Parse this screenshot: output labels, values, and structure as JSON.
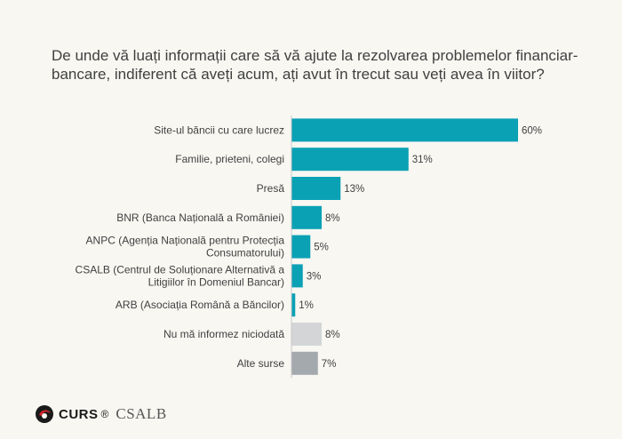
{
  "title": "De unde vă luați informații care să vă ajute la rezolvarea problemelor financiar-bancare, indiferent că aveți acum, ați avut în trecut sau veți avea în viitor?",
  "chart_data": {
    "type": "bar",
    "orientation": "horizontal",
    "title": "De unde vă luați informații care să vă ajute la rezolvarea problemelor financiar-bancare, indiferent că aveți acum, ați avut în trecut sau veți avea în viitor?",
    "categories": [
      [
        "Site-ul băncii cu care lucrez"
      ],
      [
        "Familie, prieteni, colegi"
      ],
      [
        "Presă"
      ],
      [
        "BNR (Banca Națională a României)"
      ],
      [
        "ANPC (Agenția Națională pentru Protecția",
        "Consumatorului)"
      ],
      [
        "CSALB (Centrul de Soluționare Alternativă a",
        "Litigiilor în Domeniul Bancar)"
      ],
      [
        "ARB (Asociația Română a Băncilor)"
      ],
      [
        "Nu mă informez niciodată"
      ],
      [
        "Alte surse"
      ]
    ],
    "values": [
      60,
      31,
      13,
      8,
      5,
      3,
      1,
      8,
      7
    ],
    "value_labels": [
      "60%",
      "31%",
      "13%",
      "8%",
      "5%",
      "3%",
      "1%",
      "8%",
      "7%"
    ],
    "colors": [
      "#0aa1b5",
      "#0aa1b5",
      "#0aa1b5",
      "#0aa1b5",
      "#0aa1b5",
      "#0aa1b5",
      "#0aa1b5",
      "#d3d5d6",
      "#a4a9ae"
    ],
    "xlim": [
      0,
      60
    ],
    "grid": false,
    "axis_line": true
  },
  "footer": {
    "curs_logo_text": "CURS",
    "registered_mark": "®",
    "csalb_logo_text": "CSALB"
  }
}
